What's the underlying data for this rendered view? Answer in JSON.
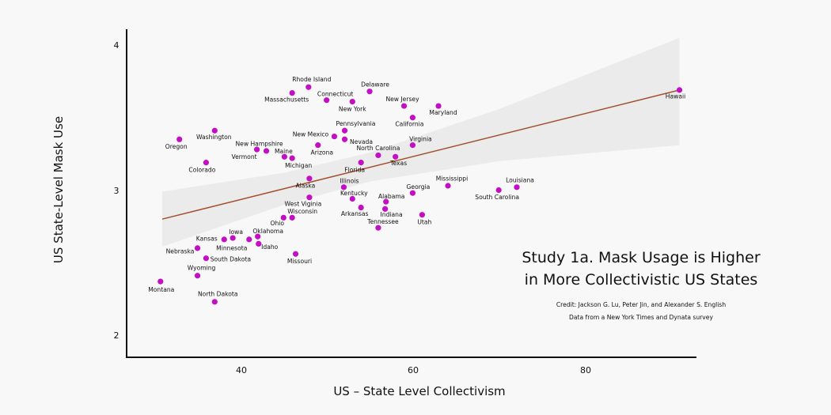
{
  "chart_data": {
    "type": "scatter",
    "title": "Study 1a. Mask Usage is Higher in More Collectivistic US States",
    "title_lines": [
      "Study 1a. Mask Usage is Higher",
      "in More Collectivistic US States"
    ],
    "credit": "Credit: Jackson G. Lu, Peter Jin, and Alexander S. English",
    "source": "Data from a New York Times and Dynata survey",
    "xlabel": "US – State Level Collectivism",
    "ylabel": "US State-Level Mask Use",
    "xlim": [
      26.7,
      92.9
    ],
    "ylim": [
      1.85,
      4.11
    ],
    "xticks": [
      "40",
      "60",
      "80"
    ],
    "yticks": [
      "4",
      "3",
      "2"
    ],
    "grid": false,
    "point_color": "#c30fc3",
    "fit_color": "#a0522d",
    "band_color": "#ebebeb",
    "fit_line": {
      "x": [
        30.8,
        90.9
      ],
      "y": [
        2.8,
        3.69
      ]
    },
    "confidence_band": {
      "x": [
        30.8,
        45,
        55,
        70,
        90.9
      ],
      "lower": [
        2.61,
        2.9,
        3.06,
        3.2,
        3.31
      ],
      "upper": [
        2.99,
        3.12,
        3.26,
        3.56,
        4.05
      ]
    },
    "points": [
      {
        "label": "Oregon",
        "x": 32.8,
        "y": 3.35
      },
      {
        "label": "Washington",
        "x": 36.9,
        "y": 3.41
      },
      {
        "label": "Colorado",
        "x": 35.9,
        "y": 3.19
      },
      {
        "label": "Vermont",
        "x": 41.8,
        "y": 3.28
      },
      {
        "label": "New Hampshire",
        "x": 42.9,
        "y": 3.27
      },
      {
        "label": "Maine",
        "x": 45.0,
        "y": 3.23
      },
      {
        "label": "Michigan",
        "x": 45.9,
        "y": 3.22
      },
      {
        "label": "Arizona",
        "x": 48.9,
        "y": 3.31
      },
      {
        "label": "New Mexico",
        "x": 50.8,
        "y": 3.37
      },
      {
        "label": "Pennsylvania",
        "x": 52.0,
        "y": 3.41
      },
      {
        "label": "Nevada",
        "x": 52.0,
        "y": 3.35
      },
      {
        "label": "Massachusetts",
        "x": 45.9,
        "y": 3.67
      },
      {
        "label": "Rhode Island",
        "x": 47.8,
        "y": 3.71
      },
      {
        "label": "Connecticut",
        "x": 49.9,
        "y": 3.62
      },
      {
        "label": "New York",
        "x": 52.9,
        "y": 3.61
      },
      {
        "label": "Delaware",
        "x": 54.9,
        "y": 3.68
      },
      {
        "label": "New Jersey",
        "x": 58.9,
        "y": 3.58
      },
      {
        "label": "Maryland",
        "x": 62.9,
        "y": 3.58
      },
      {
        "label": "California",
        "x": 59.9,
        "y": 3.5
      },
      {
        "label": "Virginia",
        "x": 59.9,
        "y": 3.31
      },
      {
        "label": "North Carolina",
        "x": 55.9,
        "y": 3.24
      },
      {
        "label": "Texas",
        "x": 57.9,
        "y": 3.23
      },
      {
        "label": "Florida",
        "x": 53.9,
        "y": 3.19
      },
      {
        "label": "Alaska",
        "x": 47.9,
        "y": 3.08
      },
      {
        "label": "Illinois",
        "x": 51.9,
        "y": 3.02
      },
      {
        "label": "Kentucky",
        "x": 52.9,
        "y": 2.94
      },
      {
        "label": "Arkansas",
        "x": 53.9,
        "y": 2.88
      },
      {
        "label": "Alabama",
        "x": 56.8,
        "y": 2.92
      },
      {
        "label": "Indiana",
        "x": 56.7,
        "y": 2.87
      },
      {
        "label": "Tennessee",
        "x": 55.9,
        "y": 2.74
      },
      {
        "label": "Georgia",
        "x": 59.9,
        "y": 2.98
      },
      {
        "label": "Utah",
        "x": 61.0,
        "y": 2.83
      },
      {
        "label": "Mississippi",
        "x": 64.0,
        "y": 3.03
      },
      {
        "label": "South Carolina",
        "x": 69.9,
        "y": 3.0
      },
      {
        "label": "Louisiana",
        "x": 72.0,
        "y": 3.02
      },
      {
        "label": "Hawaii",
        "x": 90.9,
        "y": 3.69
      },
      {
        "label": "West Viginia",
        "x": 47.9,
        "y": 2.95
      },
      {
        "label": "Wisconsin",
        "x": 45.9,
        "y": 2.81
      },
      {
        "label": "Ohio",
        "x": 44.9,
        "y": 2.81
      },
      {
        "label": "Iowa",
        "x": 39.0,
        "y": 2.67
      },
      {
        "label": "Kansas",
        "x": 38.0,
        "y": 2.66
      },
      {
        "label": "Minnesota",
        "x": 40.9,
        "y": 2.66
      },
      {
        "label": "Oklahoma",
        "x": 41.9,
        "y": 2.68
      },
      {
        "label": "Idaho",
        "x": 42.0,
        "y": 2.63
      },
      {
        "label": "Missouri",
        "x": 46.3,
        "y": 2.56
      },
      {
        "label": "Nebraska",
        "x": 34.9,
        "y": 2.6
      },
      {
        "label": "South Dakota",
        "x": 35.9,
        "y": 2.53
      },
      {
        "label": "Wyoming",
        "x": 34.9,
        "y": 2.41
      },
      {
        "label": "Montana",
        "x": 30.6,
        "y": 2.37
      },
      {
        "label": "North Dakota",
        "x": 36.9,
        "y": 2.23
      }
    ]
  }
}
